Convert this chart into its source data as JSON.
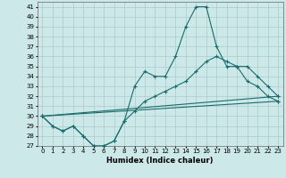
{
  "title": "",
  "xlabel": "Humidex (Indice chaleur)",
  "ylabel": "",
  "background_color": "#cce8e8",
  "grid_color": "#aacccc",
  "line_color": "#1a6b6b",
  "xlim": [
    -0.5,
    23.5
  ],
  "ylim": [
    27,
    41.5
  ],
  "yticks": [
    27,
    28,
    29,
    30,
    31,
    32,
    33,
    34,
    35,
    36,
    37,
    38,
    39,
    40,
    41
  ],
  "xticks": [
    0,
    1,
    2,
    3,
    4,
    5,
    6,
    7,
    8,
    9,
    10,
    11,
    12,
    13,
    14,
    15,
    16,
    17,
    18,
    19,
    20,
    21,
    22,
    23
  ],
  "series": [
    {
      "x": [
        0,
        1,
        2,
        3,
        4,
        5,
        6,
        7,
        8,
        9,
        10,
        11,
        12,
        13,
        14,
        15,
        16,
        17,
        18,
        19,
        20,
        21,
        22,
        23
      ],
      "y": [
        30,
        29,
        28.5,
        29,
        28,
        27,
        27,
        27.5,
        29.5,
        33,
        34.5,
        34,
        34,
        36,
        39,
        41,
        41,
        37,
        35,
        35,
        33.5,
        33,
        32,
        31.5
      ]
    },
    {
      "x": [
        0,
        1,
        2,
        3,
        4,
        5,
        6,
        7,
        8,
        9,
        10,
        11,
        12,
        13,
        14,
        15,
        16,
        17,
        18,
        19,
        20,
        21,
        22,
        23
      ],
      "y": [
        30,
        29,
        28.5,
        29,
        28,
        27,
        27,
        27.5,
        29.5,
        30.5,
        31.5,
        32,
        32.5,
        33,
        33.5,
        34.5,
        35.5,
        36,
        35.5,
        35,
        35,
        34,
        33,
        32
      ]
    },
    {
      "x": [
        0,
        23
      ],
      "y": [
        30,
        32
      ]
    },
    {
      "x": [
        0,
        23
      ],
      "y": [
        30,
        31.5
      ]
    }
  ]
}
